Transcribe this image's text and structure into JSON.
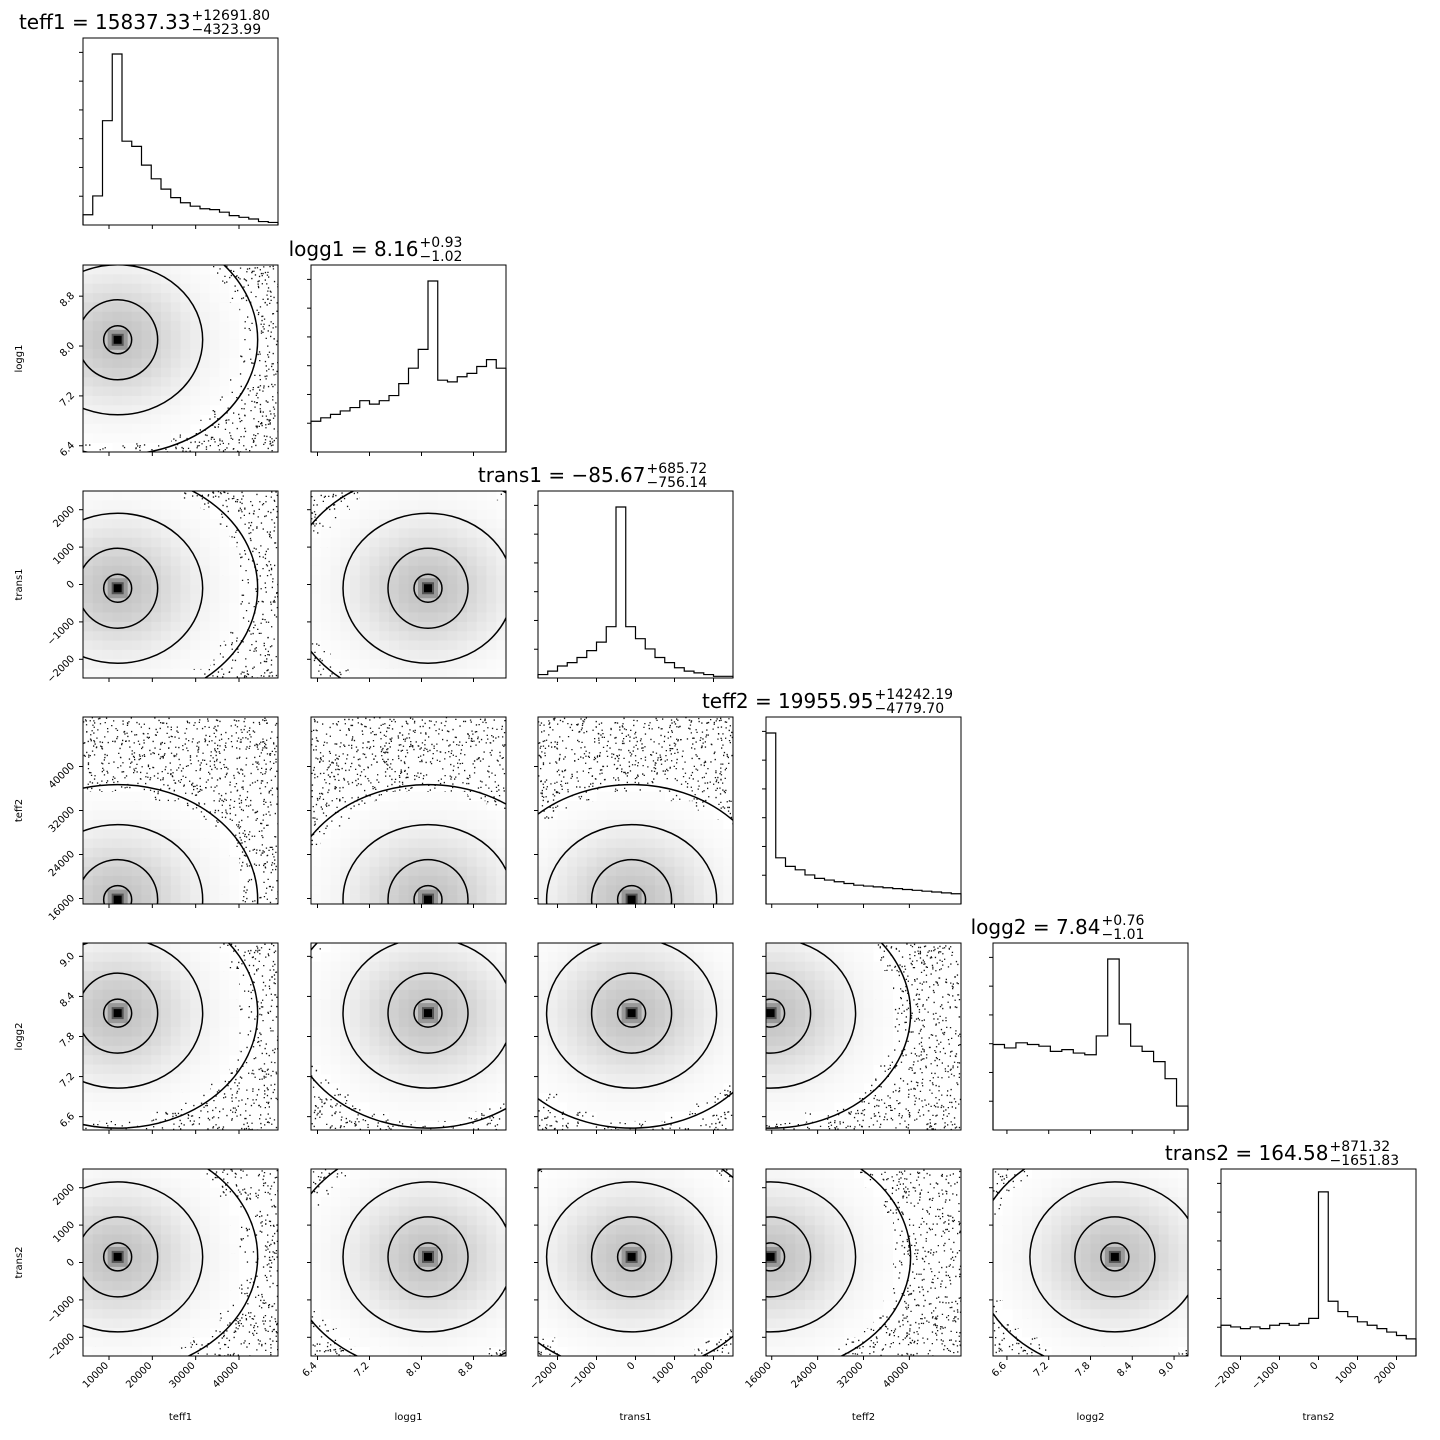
{
  "chart_data": {
    "type": "corner",
    "parameters": [
      {
        "name": "teff1",
        "title_main": "teff1 = 15837.33",
        "title_plus": "+12691.80",
        "title_minus": "−4323.99",
        "range": [
          4000,
          49000
        ],
        "ticks": [
          10000,
          20000,
          30000,
          40000
        ],
        "tick_labels": [
          "10000",
          "20000",
          "30000",
          "40000"
        ],
        "hist": [
          0.06,
          0.17,
          0.61,
          1.0,
          0.49,
          0.46,
          0.35,
          0.27,
          0.21,
          0.16,
          0.13,
          0.11,
          0.095,
          0.09,
          0.075,
          0.055,
          0.045,
          0.035,
          0.02,
          0.015
        ],
        "mode": 12000
      },
      {
        "name": "logg1",
        "title_main": "logg1 = 8.16",
        "title_plus": "+0.93",
        "title_minus": "−1.02",
        "range": [
          6.3,
          9.3
        ],
        "ticks": [
          6.4,
          7.2,
          8.0,
          8.8
        ],
        "tick_labels": [
          "6.4",
          "7.2",
          "8.0",
          "8.8"
        ],
        "hist": [
          0.18,
          0.2,
          0.22,
          0.24,
          0.26,
          0.3,
          0.28,
          0.3,
          0.33,
          0.4,
          0.49,
          0.6,
          1.0,
          0.42,
          0.41,
          0.44,
          0.46,
          0.5,
          0.54,
          0.49
        ],
        "mode": 8.1
      },
      {
        "name": "trans1",
        "title_main": "trans1 = −85.67",
        "title_plus": "+685.72",
        "title_minus": "−756.14",
        "range": [
          -2500,
          2500
        ],
        "ticks": [
          -2000,
          -1000,
          0,
          1000,
          2000
        ],
        "tick_labels": [
          "−2000",
          "−1000",
          "0",
          "1000",
          "2000"
        ],
        "hist": [
          0.02,
          0.04,
          0.07,
          0.09,
          0.12,
          0.16,
          0.21,
          0.3,
          1.0,
          0.3,
          0.23,
          0.17,
          0.12,
          0.09,
          0.06,
          0.04,
          0.03,
          0.02,
          0.01,
          0.01
        ],
        "mode": -100
      },
      {
        "name": "teff2",
        "title_main": "teff2 = 19955.95",
        "title_plus": "+14242.19",
        "title_minus": "−4779.70",
        "range": [
          15000,
          49000
        ],
        "ticks": [
          16000,
          24000,
          32000,
          40000
        ],
        "tick_labels": [
          "16000",
          "24000",
          "32000",
          "40000"
        ],
        "hist": [
          1.0,
          0.27,
          0.22,
          0.2,
          0.17,
          0.15,
          0.14,
          0.13,
          0.12,
          0.11,
          0.105,
          0.1,
          0.095,
          0.09,
          0.085,
          0.08,
          0.075,
          0.07,
          0.065,
          0.06
        ],
        "mode": 15800
      },
      {
        "name": "logg2",
        "title_main": "logg2 = 7.84",
        "title_plus": "+0.76",
        "title_minus": "−1.01",
        "range": [
          6.4,
          9.2
        ],
        "ticks": [
          6.6,
          7.2,
          7.8,
          8.4,
          9.0
        ],
        "tick_labels": [
          "6.6",
          "7.2",
          "7.8",
          "8.4",
          "9.0"
        ],
        "hist": [
          0.5,
          0.48,
          0.51,
          0.5,
          0.49,
          0.46,
          0.47,
          0.45,
          0.44,
          0.55,
          1.0,
          0.62,
          0.49,
          0.46,
          0.4,
          0.3,
          0.14
        ],
        "mode": 8.15
      },
      {
        "name": "trans2",
        "title_main": "trans2 = 164.58",
        "title_plus": "+871.32",
        "title_minus": "−1651.83",
        "range": [
          -2500,
          2500
        ],
        "ticks": [
          -2000,
          -1000,
          0,
          1000,
          2000
        ],
        "tick_labels": [
          "−2000",
          "−1000",
          "0",
          "1000",
          "2000"
        ],
        "hist": [
          0.18,
          0.17,
          0.16,
          0.17,
          0.16,
          0.18,
          0.19,
          0.18,
          0.19,
          0.22,
          0.96,
          0.32,
          0.26,
          0.23,
          0.2,
          0.18,
          0.16,
          0.14,
          0.12,
          0.1
        ],
        "mode": 150
      }
    ],
    "grid": false,
    "legend": "none"
  }
}
